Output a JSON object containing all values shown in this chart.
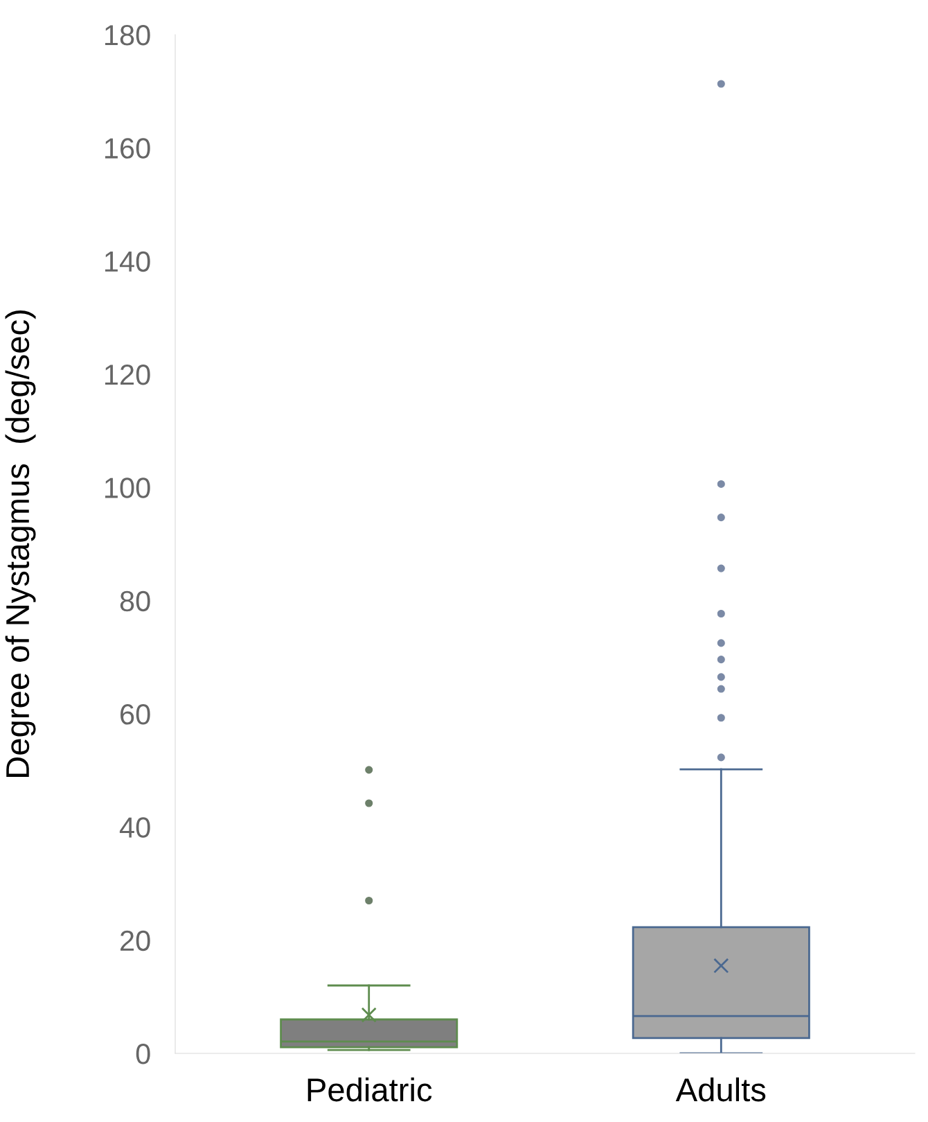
{
  "chart_data": {
    "type": "box",
    "ylabel": "Degree of Nystagmus  (deg/sec)",
    "categories": [
      "Pediatric",
      "Adults"
    ],
    "colors": [
      "#5e8c4e",
      "#4a6890"
    ],
    "boxes": [
      {
        "low": 0.6,
        "q1": 1.1,
        "median": 2.1,
        "q3": 6.0,
        "high": 12.0,
        "mean": 6.8,
        "outliers": [
          27.0,
          44.2,
          50.1
        ]
      },
      {
        "low": 0,
        "q1": 2.7,
        "median": 6.6,
        "q3": 22.3,
        "high": 50.2,
        "mean": 15.5,
        "outliers": [
          52.3,
          59.3,
          64.4,
          66.5,
          69.6,
          72.5,
          77.7,
          85.7,
          94.7,
          100.6,
          171.3
        ]
      }
    ],
    "ylim": [
      0,
      180
    ],
    "yticks": [
      0,
      20,
      40,
      60,
      80,
      100,
      120,
      140,
      160,
      180
    ],
    "grid": false
  }
}
